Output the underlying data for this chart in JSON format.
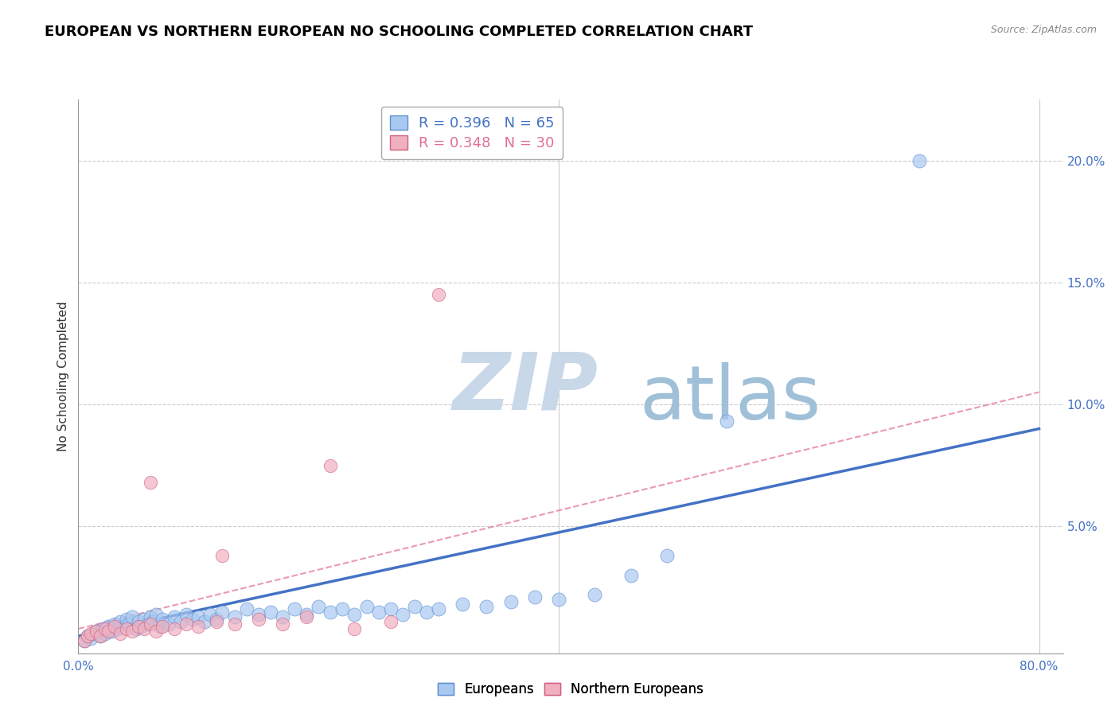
{
  "title": "EUROPEAN VS NORTHERN EUROPEAN NO SCHOOLING COMPLETED CORRELATION CHART",
  "source": "Source: ZipAtlas.com",
  "ylabel": "No Schooling Completed",
  "y_ticks": [
    0.0,
    0.05,
    0.1,
    0.15,
    0.2
  ],
  "y_tick_labels": [
    "",
    "5.0%",
    "10.0%",
    "15.0%",
    "20.0%"
  ],
  "x_ticks": [
    0.0,
    0.1,
    0.2,
    0.3,
    0.4,
    0.5,
    0.6,
    0.7,
    0.8
  ],
  "xlim": [
    0.0,
    0.82
  ],
  "ylim": [
    -0.002,
    0.225
  ],
  "legend_eu": "R = 0.396   N = 65",
  "legend_neu": "R = 0.348   N = 30",
  "legend_label_eu": "Europeans",
  "legend_label_neu": "Northern Europeans",
  "eu_color": "#a8c8f0",
  "neu_color": "#f0b0c0",
  "eu_edge_color": "#6090d0",
  "neu_edge_color": "#d06080",
  "eu_line_color": "#4472c4",
  "neu_line_color": "#e07090",
  "watermark_zip": "ZIP",
  "watermark_atlas": "atlas",
  "watermark_color_zip": "#c8d8e8",
  "watermark_color_atlas": "#a0c0d8",
  "title_fontsize": 13,
  "axis_label_fontsize": 11,
  "tick_fontsize": 11,
  "eu_scatter_x": [
    0.005,
    0.008,
    0.01,
    0.012,
    0.015,
    0.018,
    0.02,
    0.022,
    0.025,
    0.028,
    0.03,
    0.032,
    0.035,
    0.038,
    0.04,
    0.042,
    0.045,
    0.048,
    0.05,
    0.052,
    0.055,
    0.058,
    0.06,
    0.062,
    0.065,
    0.068,
    0.07,
    0.075,
    0.08,
    0.085,
    0.09,
    0.095,
    0.1,
    0.105,
    0.11,
    0.115,
    0.12,
    0.13,
    0.14,
    0.15,
    0.16,
    0.17,
    0.18,
    0.19,
    0.2,
    0.21,
    0.22,
    0.23,
    0.24,
    0.25,
    0.26,
    0.27,
    0.28,
    0.29,
    0.3,
    0.32,
    0.34,
    0.36,
    0.38,
    0.4,
    0.43,
    0.46,
    0.49,
    0.54,
    0.7
  ],
  "eu_scatter_y": [
    0.003,
    0.005,
    0.004,
    0.006,
    0.007,
    0.005,
    0.008,
    0.006,
    0.009,
    0.007,
    0.01,
    0.008,
    0.011,
    0.009,
    0.012,
    0.01,
    0.013,
    0.008,
    0.011,
    0.009,
    0.012,
    0.01,
    0.013,
    0.011,
    0.014,
    0.009,
    0.012,
    0.01,
    0.013,
    0.011,
    0.014,
    0.012,
    0.013,
    0.011,
    0.014,
    0.012,
    0.015,
    0.013,
    0.016,
    0.014,
    0.015,
    0.013,
    0.016,
    0.014,
    0.017,
    0.015,
    0.016,
    0.014,
    0.017,
    0.015,
    0.016,
    0.014,
    0.017,
    0.015,
    0.016,
    0.018,
    0.017,
    0.019,
    0.021,
    0.02,
    0.022,
    0.03,
    0.038,
    0.093,
    0.2
  ],
  "neu_scatter_x": [
    0.005,
    0.008,
    0.01,
    0.015,
    0.018,
    0.022,
    0.025,
    0.03,
    0.035,
    0.04,
    0.045,
    0.05,
    0.055,
    0.06,
    0.065,
    0.07,
    0.08,
    0.09,
    0.1,
    0.115,
    0.13,
    0.15,
    0.17,
    0.19,
    0.21,
    0.23,
    0.26,
    0.3,
    0.06,
    0.12
  ],
  "neu_scatter_y": [
    0.003,
    0.005,
    0.006,
    0.007,
    0.005,
    0.008,
    0.007,
    0.009,
    0.006,
    0.008,
    0.007,
    0.009,
    0.008,
    0.01,
    0.007,
    0.009,
    0.008,
    0.01,
    0.009,
    0.011,
    0.01,
    0.012,
    0.01,
    0.013,
    0.075,
    0.008,
    0.011,
    0.145,
    0.068,
    0.038
  ],
  "eu_trend_x": [
    0.0,
    0.8
  ],
  "eu_trend_y": [
    0.005,
    0.09
  ],
  "neu_trend_x": [
    0.0,
    0.8
  ],
  "neu_trend_y": [
    0.008,
    0.105
  ]
}
